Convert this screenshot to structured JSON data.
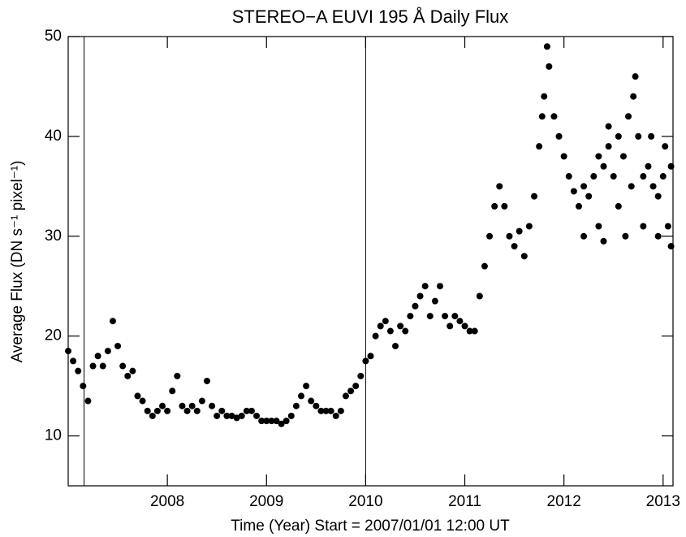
{
  "chart_data": {
    "type": "scatter",
    "title": "STEREO−A EUVI 195 Å Daily Flux",
    "xlabel": "Time (Year)  Start = 2007/01/01 12:00 UT",
    "ylabel": "Average Flux  (DN s⁻¹ pixel⁻¹)",
    "xlim": [
      2007.0,
      2013.1
    ],
    "ylim": [
      5,
      50
    ],
    "xticks": [
      2008,
      2009,
      2010,
      2011,
      2012,
      2013
    ],
    "yticks": [
      10,
      20,
      30,
      40,
      50
    ],
    "vlines": [
      2007.16,
      2010.0
    ],
    "color": "#000000",
    "x": [
      2007.0,
      2007.05,
      2007.1,
      2007.15,
      2007.2,
      2007.25,
      2007.3,
      2007.35,
      2007.4,
      2007.45,
      2007.5,
      2007.55,
      2007.6,
      2007.65,
      2007.7,
      2007.75,
      2007.8,
      2007.85,
      2007.9,
      2007.95,
      2008.0,
      2008.05,
      2008.1,
      2008.15,
      2008.2,
      2008.25,
      2008.3,
      2008.35,
      2008.4,
      2008.45,
      2008.5,
      2008.55,
      2008.6,
      2008.65,
      2008.7,
      2008.75,
      2008.8,
      2008.85,
      2008.9,
      2008.95,
      2009.0,
      2009.05,
      2009.1,
      2009.15,
      2009.2,
      2009.25,
      2009.3,
      2009.35,
      2009.4,
      2009.45,
      2009.5,
      2009.55,
      2009.6,
      2009.65,
      2009.7,
      2009.75,
      2009.8,
      2009.85,
      2009.9,
      2009.95,
      2010.0,
      2010.05,
      2010.1,
      2010.15,
      2010.2,
      2010.25,
      2010.3,
      2010.35,
      2010.4,
      2010.45,
      2010.5,
      2010.55,
      2010.6,
      2010.65,
      2010.7,
      2010.75,
      2010.8,
      2010.85,
      2010.9,
      2010.95,
      2011.0,
      2011.05,
      2011.1,
      2011.15,
      2011.2,
      2011.25,
      2011.3,
      2011.35,
      2011.4,
      2011.45,
      2011.5,
      2011.55,
      2011.6,
      2011.65,
      2011.7,
      2011.75,
      2011.8,
      2011.85,
      2011.9,
      2011.95,
      2012.0,
      2012.05,
      2012.1,
      2012.15,
      2012.2,
      2012.25,
      2012.3,
      2012.35,
      2012.4,
      2012.45,
      2012.5,
      2012.55,
      2012.6,
      2012.65,
      2012.7,
      2012.75,
      2012.8,
      2012.85,
      2012.9,
      2012.95,
      2013.0,
      2013.05,
      2013.08,
      2012.35,
      2012.45,
      2012.55,
      2012.62,
      2012.72,
      2012.8,
      2012.88,
      2012.95,
      2013.02,
      2013.08,
      2011.83,
      2011.78,
      2012.4,
      2012.68,
      2012.2
    ],
    "values": [
      18.5,
      17.5,
      16.5,
      15,
      13.5,
      17,
      18,
      17,
      18.5,
      21.5,
      19,
      17,
      16,
      16.5,
      14,
      13.5,
      12.5,
      12,
      12.5,
      13,
      12.5,
      14.5,
      16,
      13,
      12.5,
      13,
      12.5,
      13.5,
      15.5,
      13,
      12,
      12.5,
      12,
      12,
      11.8,
      12,
      12.5,
      12.5,
      12,
      11.5,
      11.5,
      11.5,
      11.5,
      11.2,
      11.5,
      12,
      13,
      14,
      15,
      13.5,
      13,
      12.5,
      12.5,
      12.5,
      12,
      12.5,
      14,
      14.5,
      15,
      16,
      17.5,
      18,
      20,
      21,
      21.5,
      20.5,
      19,
      21,
      20.5,
      22,
      23,
      24,
      25,
      22,
      23.5,
      25,
      22,
      21,
      22,
      21.5,
      21,
      20.5,
      20.5,
      24,
      27,
      30,
      33,
      35,
      33,
      30,
      29,
      30.5,
      28,
      31,
      34,
      39,
      44,
      47,
      42,
      40,
      38,
      36,
      34.5,
      33,
      35,
      34,
      36,
      38,
      37,
      39,
      36,
      40,
      38,
      42,
      44,
      40,
      36,
      37,
      35,
      34,
      36,
      31,
      37,
      31,
      41,
      33,
      30,
      46,
      31,
      40,
      30,
      39,
      29,
      49,
      42,
      29.5,
      35,
      30
    ]
  }
}
